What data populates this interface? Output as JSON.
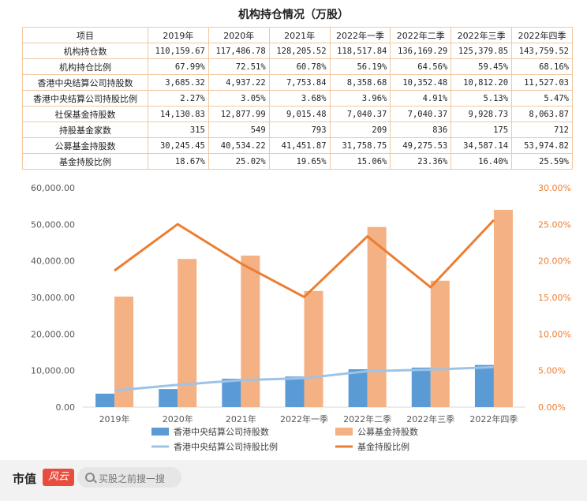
{
  "title": "机构持仓情况（万股）",
  "table": {
    "header": [
      "项目",
      "2019年",
      "2020年",
      "2021年",
      "2022年一季",
      "2022年二季",
      "2022年三季",
      "2022年四季"
    ],
    "rows": [
      {
        "label": "机构持仓数",
        "cells": [
          "110,159.67",
          "117,486.78",
          "128,205.52",
          "118,517.84",
          "136,169.29",
          "125,379.85",
          "143,759.52"
        ]
      },
      {
        "label": "机构持仓比例",
        "cells": [
          "67.99%",
          "72.51%",
          "60.78%",
          "56.19%",
          "64.56%",
          "59.45%",
          "68.16%"
        ]
      },
      {
        "label": "香港中央结算公司持股数",
        "cells": [
          "3,685.32",
          "4,937.22",
          "7,753.84",
          "8,358.68",
          "10,352.48",
          "10,812.20",
          "11,527.03"
        ]
      },
      {
        "label": "香港中央结算公司持股比例",
        "cells": [
          "2.27%",
          "3.05%",
          "3.68%",
          "3.96%",
          "4.91%",
          "5.13%",
          "5.47%"
        ]
      },
      {
        "label": "社保基金持股数",
        "cells": [
          "14,130.83",
          "12,877.99",
          "9,015.48",
          "7,040.37",
          "7,040.37",
          "9,928.73",
          "8,063.87"
        ]
      },
      {
        "label": "持股基金家数",
        "cells": [
          "315",
          "549",
          "793",
          "209",
          "836",
          "175",
          "712"
        ]
      },
      {
        "label": "公募基金持股数",
        "cells": [
          "30,245.45",
          "40,534.22",
          "41,451.87",
          "31,758.75",
          "49,275.53",
          "34,587.14",
          "53,974.82"
        ]
      },
      {
        "label": "基金持股比例",
        "cells": [
          "18.67%",
          "25.02%",
          "19.65%",
          "15.06%",
          "23.36%",
          "16.40%",
          "25.59%"
        ]
      }
    ]
  },
  "chart_data": {
    "type": "bar",
    "categories": [
      "2019年",
      "2020年",
      "2021年",
      "2022年一季",
      "2022年二季",
      "2022年三季",
      "2022年四季"
    ],
    "series": [
      {
        "name": "香港中央结算公司持股数",
        "kind": "bar",
        "axis": "left",
        "color": "#5b9bd5",
        "values": [
          3685.32,
          4937.22,
          7753.84,
          8358.68,
          10352.48,
          10812.2,
          11527.03
        ]
      },
      {
        "name": "公募基金持股数",
        "kind": "bar",
        "axis": "left",
        "color": "#f4b183",
        "values": [
          30245.45,
          40534.22,
          41451.87,
          31758.75,
          49275.53,
          34587.14,
          53974.82
        ]
      },
      {
        "name": "香港中央结算公司持股比例",
        "kind": "line",
        "axis": "right",
        "color": "#9dc3e6",
        "values": [
          2.27,
          3.05,
          3.68,
          3.96,
          4.91,
          5.13,
          5.47
        ]
      },
      {
        "name": "基金持股比例",
        "kind": "line",
        "axis": "right",
        "color": "#ed7d31",
        "values": [
          18.67,
          25.02,
          19.65,
          15.06,
          23.36,
          16.4,
          25.59
        ]
      }
    ],
    "y_left": {
      "min": 0,
      "max": 60000,
      "ticks": [
        0,
        10000,
        20000,
        30000,
        40000,
        50000,
        60000
      ],
      "tick_labels": [
        "0.00",
        "10,000.00",
        "20,000.00",
        "30,000.00",
        "40,000.00",
        "50,000.00",
        "60,000.00"
      ]
    },
    "y_right": {
      "min": 0,
      "max": 30,
      "ticks": [
        0,
        5,
        10,
        15,
        20,
        25,
        30
      ],
      "tick_labels": [
        "0.00%",
        "5.00%",
        "10.00%",
        "15.00%",
        "20.00%",
        "25.00%",
        "30.00%"
      ],
      "color": "#ed7d31"
    },
    "grid": false,
    "legend_position": "bottom"
  },
  "footer": {
    "logo_text": "市值",
    "logo_badge": "风云",
    "search_placeholder": "买股之前搜一搜",
    "search_icon": "search-icon"
  }
}
